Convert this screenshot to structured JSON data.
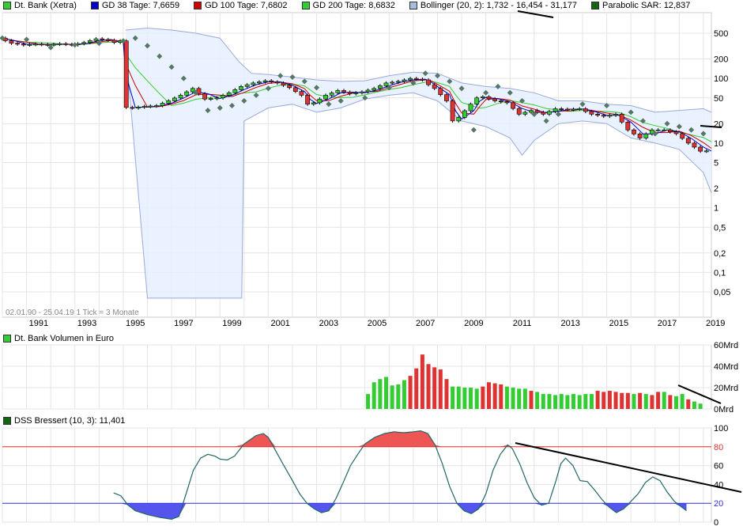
{
  "legend_price": [
    {
      "label": "Dt. Bank (Xetra)",
      "color": "#33cc33"
    },
    {
      "label": "GD 38 Tage: 7,6659",
      "color": "#0000cc"
    },
    {
      "label": "GD 100 Tage: 7,6802",
      "color": "#cc0000"
    },
    {
      "label": "GD 200 Tage: 8,6832",
      "color": "#33cc33"
    },
    {
      "label": "Bollinger (20, 2): 1,732 - 16,454 - 31,177",
      "color": "#aabbdd"
    },
    {
      "label": "Parabolic SAR: 12,837",
      "color": "#116611"
    }
  ],
  "legend_volume": {
    "label": "Dt. Bank Volumen in Euro",
    "color": "#33cc33"
  },
  "legend_dss": {
    "label": "DSS Bressert (10, 3): 11,401",
    "color": "#116611"
  },
  "info_text": "02.01.90 - 25.04.19   1 Tick = 3 Monate",
  "colors": {
    "up": "#33cc33",
    "down": "#dd3333",
    "bollinger_fill": "#e6eeff",
    "bollinger_line": "#99aadd",
    "sar": "#557766",
    "sar_dark": "#115511",
    "gd38": "#0000cc",
    "gd100": "#cc0000",
    "gd200": "#33cc33",
    "dss_line": "#226666",
    "dss_over": "#ee5555",
    "dss_under": "#5555ee"
  },
  "chart_data": [
    {
      "type": "candlestick",
      "title": "Dt. Bank (Xetra)",
      "y_scale": "log",
      "y_ticks": [
        "500",
        "200",
        "100",
        "50",
        "20",
        "10",
        "5",
        "2",
        "1",
        "0,5",
        "0,2",
        "0,1",
        "0,05"
      ],
      "y_tick_values": [
        500,
        200,
        100,
        50,
        20,
        10,
        5,
        2,
        1,
        0.5,
        0.2,
        0.1,
        0.05
      ],
      "x_ticks": [
        "1991",
        "1993",
        "1995",
        "1997",
        "1999",
        "2001",
        "2003",
        "2005",
        "2007",
        "2009",
        "2011",
        "2013",
        "2015",
        "2017",
        "2019"
      ],
      "x_tick_years": [
        1991,
        1993,
        1995,
        1997,
        1999,
        2001,
        2003,
        2005,
        2007,
        2009,
        2011,
        2013,
        2015,
        2017,
        2019
      ],
      "x_range": [
        1990.0,
        2019.33
      ],
      "grid": true,
      "close_series": [
        [
          1990.0,
          420
        ],
        [
          1990.5,
          350
        ],
        [
          1991.0,
          330
        ],
        [
          1991.5,
          340
        ],
        [
          1992.0,
          330
        ],
        [
          1992.5,
          345
        ],
        [
          1993.0,
          330
        ],
        [
          1993.5,
          360
        ],
        [
          1994.0,
          410
        ],
        [
          1994.5,
          390
        ],
        [
          1994.75,
          360
        ],
        [
          1995.0,
          380
        ],
        [
          1995.1,
          36
        ],
        [
          1995.5,
          35
        ],
        [
          1996.0,
          37
        ],
        [
          1996.5,
          38
        ],
        [
          1997.0,
          45
        ],
        [
          1997.5,
          55
        ],
        [
          1998.0,
          70
        ],
        [
          1998.5,
          48
        ],
        [
          1999.0,
          50
        ],
        [
          1999.5,
          60
        ],
        [
          2000.0,
          75
        ],
        [
          2000.5,
          85
        ],
        [
          2001.0,
          92
        ],
        [
          2001.5,
          85
        ],
        [
          2002.0,
          72
        ],
        [
          2002.5,
          55
        ],
        [
          2002.75,
          40
        ],
        [
          2003.0,
          42
        ],
        [
          2003.5,
          55
        ],
        [
          2004.0,
          65
        ],
        [
          2004.5,
          58
        ],
        [
          2005.0,
          62
        ],
        [
          2005.5,
          70
        ],
        [
          2006.0,
          85
        ],
        [
          2006.5,
          90
        ],
        [
          2007.0,
          100
        ],
        [
          2007.5,
          95
        ],
        [
          2007.75,
          80
        ],
        [
          2008.0,
          70
        ],
        [
          2008.5,
          45
        ],
        [
          2008.75,
          22
        ],
        [
          2009.0,
          25
        ],
        [
          2009.5,
          40
        ],
        [
          2009.75,
          50
        ],
        [
          2010.0,
          52
        ],
        [
          2010.5,
          45
        ],
        [
          2011.0,
          42
        ],
        [
          2011.5,
          28
        ],
        [
          2012.0,
          32
        ],
        [
          2012.5,
          28
        ],
        [
          2013.0,
          34
        ],
        [
          2013.5,
          33
        ],
        [
          2014.0,
          34
        ],
        [
          2014.5,
          28
        ],
        [
          2015.0,
          26
        ],
        [
          2015.5,
          28
        ],
        [
          2016.0,
          16
        ],
        [
          2016.5,
          12
        ],
        [
          2017.0,
          16
        ],
        [
          2017.5,
          16
        ],
        [
          2018.0,
          14
        ],
        [
          2018.5,
          10
        ],
        [
          2019.0,
          7.5
        ],
        [
          2019.33,
          7.6
        ]
      ],
      "bollinger_upper": [
        [
          1995.1,
          560
        ],
        [
          1996.0,
          600
        ],
        [
          1997.0,
          560
        ],
        [
          1998.0,
          500
        ],
        [
          1999.0,
          420
        ],
        [
          1999.8,
          180
        ],
        [
          2000.3,
          120
        ],
        [
          2001.0,
          115
        ],
        [
          2002.0,
          105
        ],
        [
          2003.0,
          95
        ],
        [
          2004.0,
          90
        ],
        [
          2005.0,
          92
        ],
        [
          2006.0,
          110
        ],
        [
          2007.0,
          125
        ],
        [
          2008.0,
          120
        ],
        [
          2009.0,
          85
        ],
        [
          2010.0,
          75
        ],
        [
          2011.0,
          70
        ],
        [
          2012.0,
          60
        ],
        [
          2013.0,
          45
        ],
        [
          2014.0,
          45
        ],
        [
          2015.0,
          40
        ],
        [
          2016.0,
          38
        ],
        [
          2017.0,
          30
        ],
        [
          2018.0,
          32
        ],
        [
          2019.0,
          34
        ],
        [
          2019.33,
          30
        ]
      ],
      "bollinger_lower": [
        [
          1995.1,
          300
        ],
        [
          1996.0,
          0.04
        ],
        [
          1999.5,
          0.04
        ],
        [
          1999.9,
          0.04
        ],
        [
          2000.0,
          22
        ],
        [
          2001.0,
          35
        ],
        [
          2002.0,
          40
        ],
        [
          2003.0,
          30
        ],
        [
          2004.0,
          35
        ],
        [
          2005.0,
          48
        ],
        [
          2006.0,
          55
        ],
        [
          2007.0,
          60
        ],
        [
          2008.0,
          45
        ],
        [
          2009.0,
          22
        ],
        [
          2010.0,
          18
        ],
        [
          2011.0,
          12
        ],
        [
          2011.5,
          6.5
        ],
        [
          2012.0,
          11
        ],
        [
          2013.0,
          20
        ],
        [
          2014.0,
          22
        ],
        [
          2015.0,
          20
        ],
        [
          2016.0,
          12
        ],
        [
          2017.0,
          10
        ],
        [
          2018.0,
          8
        ],
        [
          2019.0,
          3.5
        ],
        [
          2019.33,
          1.7
        ]
      ],
      "sar_points": [
        [
          1990.0,
          420
        ],
        [
          1991.0,
          400
        ],
        [
          1992.0,
          300
        ],
        [
          1993.0,
          330
        ],
        [
          1994.0,
          350
        ],
        [
          1995.0,
          380
        ],
        [
          1995.5,
          420
        ],
        [
          1996.0,
          320
        ],
        [
          1996.5,
          220
        ],
        [
          1997.0,
          150
        ],
        [
          1997.5,
          100
        ],
        [
          1998.0,
          60
        ],
        [
          1998.5,
          32
        ],
        [
          1999.0,
          35
        ],
        [
          1999.5,
          38
        ],
        [
          2000.0,
          45
        ],
        [
          2000.5,
          55
        ],
        [
          2001.0,
          70
        ],
        [
          2001.5,
          110
        ],
        [
          2002.0,
          105
        ],
        [
          2002.5,
          90
        ],
        [
          2003.0,
          72
        ],
        [
          2003.5,
          40
        ],
        [
          2004.0,
          45
        ],
        [
          2005.0,
          50
        ],
        [
          2006.0,
          72
        ],
        [
          2007.0,
          85
        ],
        [
          2007.5,
          120
        ],
        [
          2008.0,
          110
        ],
        [
          2008.5,
          90
        ],
        [
          2009.0,
          70
        ],
        [
          2009.5,
          16
        ],
        [
          2010.0,
          60
        ],
        [
          2010.5,
          75
        ],
        [
          2011.0,
          60
        ],
        [
          2011.5,
          45
        ],
        [
          2012.0,
          28
        ],
        [
          2012.5,
          22
        ],
        [
          2013.0,
          28
        ],
        [
          2014.0,
          40
        ],
        [
          2015.0,
          38
        ],
        [
          2016.0,
          30
        ],
        [
          2016.5,
          22
        ],
        [
          2017.0,
          14
        ],
        [
          2017.5,
          20
        ],
        [
          2018.0,
          18
        ],
        [
          2018.5,
          16
        ],
        [
          2019.0,
          14
        ]
      ]
    },
    {
      "type": "bar",
      "title": "Dt. Bank Volumen in Euro",
      "y_ticks": [
        "60Mrd",
        "40Mrd",
        "20Mrd",
        "0Mrd"
      ],
      "y_tick_values": [
        60,
        40,
        20,
        0
      ],
      "unit": "Mrd",
      "x_start": 2005.0,
      "x_step": 0.25,
      "values": [
        14,
        25,
        28,
        30,
        22,
        23,
        27,
        31,
        38,
        51,
        42,
        39,
        37,
        28,
        21,
        21,
        20,
        20,
        19,
        21,
        25,
        24,
        23,
        21,
        20,
        19,
        19,
        17,
        16,
        14,
        14,
        13,
        14,
        13,
        14,
        13,
        14,
        14,
        17,
        16,
        17,
        16,
        15,
        15,
        14,
        15,
        14,
        13,
        16,
        16,
        13,
        12,
        14,
        9,
        7,
        5
      ],
      "up_flags": [
        1,
        1,
        1,
        1,
        1,
        1,
        1,
        0,
        0,
        0,
        0,
        0,
        0,
        0,
        1,
        1,
        1,
        1,
        1,
        0,
        0,
        0,
        0,
        1,
        1,
        1,
        1,
        0,
        1,
        1,
        1,
        1,
        1,
        1,
        1,
        1,
        1,
        1,
        0,
        0,
        0,
        0,
        0,
        0,
        1,
        0,
        1,
        0,
        0,
        1,
        0,
        1,
        1,
        0,
        1,
        1
      ]
    },
    {
      "type": "line",
      "title": "DSS Bressert (10, 3)",
      "y_ticks": [
        "100",
        "80",
        "60",
        "40",
        "20",
        "0"
      ],
      "y_tick_values": [
        100,
        80,
        60,
        40,
        20,
        0
      ],
      "ylim": [
        0,
        100
      ],
      "upper_level": 80,
      "lower_level": 20,
      "points": [
        [
          1994.6,
          31
        ],
        [
          1994.9,
          28
        ],
        [
          1995.2,
          18
        ],
        [
          1995.5,
          12
        ],
        [
          1996.0,
          8
        ],
        [
          1996.5,
          5
        ],
        [
          1997.0,
          3
        ],
        [
          1997.3,
          6
        ],
        [
          1997.6,
          30
        ],
        [
          1997.9,
          55
        ],
        [
          1998.2,
          68
        ],
        [
          1998.5,
          72
        ],
        [
          1998.8,
          70
        ],
        [
          1999.0,
          67
        ],
        [
          1999.3,
          66
        ],
        [
          1999.6,
          70
        ],
        [
          2000.0,
          83
        ],
        [
          2000.5,
          92
        ],
        [
          2000.8,
          94
        ],
        [
          2001.0,
          90
        ],
        [
          2001.3,
          76
        ],
        [
          2001.6,
          62
        ],
        [
          2002.0,
          44
        ],
        [
          2002.3,
          30
        ],
        [
          2002.6,
          20
        ],
        [
          2002.9,
          14
        ],
        [
          2003.2,
          10
        ],
        [
          2003.5,
          12
        ],
        [
          2003.8,
          25
        ],
        [
          2004.1,
          42
        ],
        [
          2004.4,
          60
        ],
        [
          2004.7,
          72
        ],
        [
          2005.0,
          83
        ],
        [
          2005.4,
          90
        ],
        [
          2005.8,
          94
        ],
        [
          2006.2,
          96
        ],
        [
          2006.6,
          95
        ],
        [
          2007.0,
          96
        ],
        [
          2007.3,
          97
        ],
        [
          2007.6,
          94
        ],
        [
          2007.9,
          82
        ],
        [
          2008.2,
          62
        ],
        [
          2008.5,
          38
        ],
        [
          2008.8,
          20
        ],
        [
          2009.1,
          12
        ],
        [
          2009.4,
          9
        ],
        [
          2009.7,
          14
        ],
        [
          2010.0,
          30
        ],
        [
          2010.3,
          55
        ],
        [
          2010.6,
          72
        ],
        [
          2010.9,
          82
        ],
        [
          2011.1,
          78
        ],
        [
          2011.4,
          62
        ],
        [
          2011.7,
          42
        ],
        [
          2012.0,
          26
        ],
        [
          2012.3,
          18
        ],
        [
          2012.6,
          20
        ],
        [
          2012.9,
          44
        ],
        [
          2013.1,
          62
        ],
        [
          2013.3,
          68
        ],
        [
          2013.6,
          60
        ],
        [
          2013.9,
          44
        ],
        [
          2014.2,
          43
        ],
        [
          2014.5,
          34
        ],
        [
          2014.8,
          24
        ],
        [
          2015.1,
          16
        ],
        [
          2015.4,
          10
        ],
        [
          2015.7,
          14
        ],
        [
          2016.0,
          22
        ],
        [
          2016.3,
          30
        ],
        [
          2016.6,
          42
        ],
        [
          2016.9,
          48
        ],
        [
          2017.2,
          44
        ],
        [
          2017.5,
          32
        ],
        [
          2017.8,
          22
        ],
        [
          2018.1,
          16
        ],
        [
          2018.3,
          12
        ]
      ]
    }
  ]
}
